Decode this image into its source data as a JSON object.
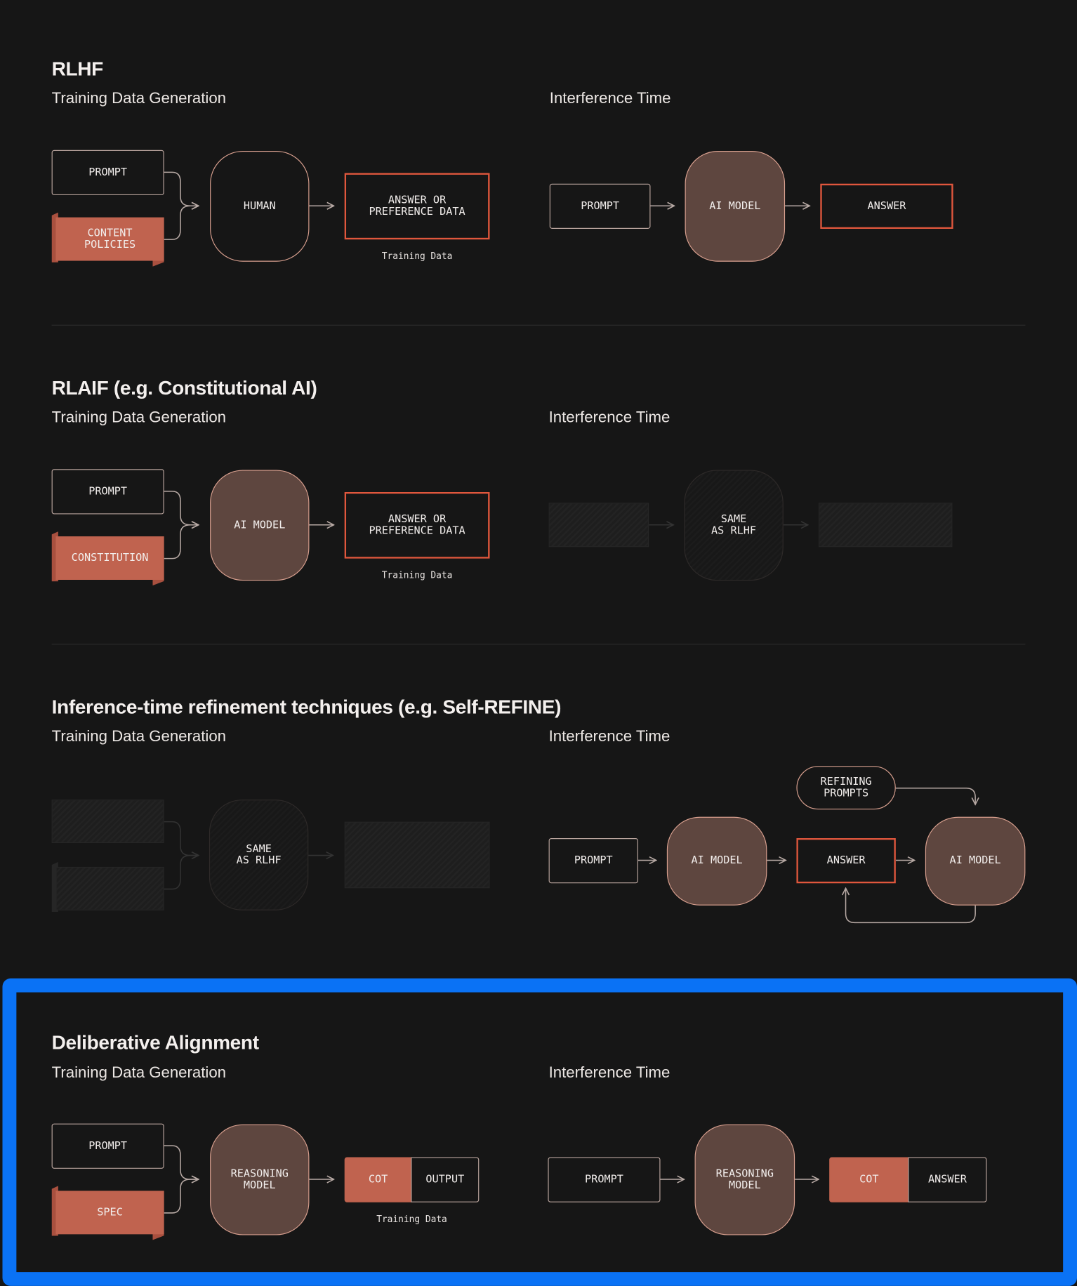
{
  "sections": [
    {
      "title": "RLHF",
      "training_label": "Training Data Generation",
      "inference_label": "Interference Time",
      "training": {
        "input": "PROMPT",
        "policy": "CONTENT\nPOLICIES",
        "model": "HUMAN",
        "output": "ANSWER OR\nPREFERENCE DATA",
        "caption": "Training Data"
      },
      "inference": {
        "input": "PROMPT",
        "model": "AI MODEL",
        "output": "ANSWER"
      }
    },
    {
      "title": "RLAIF (e.g. Constitutional AI)",
      "training_label": "Training Data Generation",
      "inference_label": "Interference Time",
      "training": {
        "input": "PROMPT",
        "policy": "CONSTITUTION",
        "model": "AI MODEL",
        "output": "ANSWER OR\nPREFERENCE DATA",
        "caption": "Training Data"
      },
      "inference": {
        "model": "SAME\nAS RLHF"
      }
    },
    {
      "title": "Inference-time refinement techniques (e.g. Self-REFINE)",
      "training_label": "Training Data Generation",
      "inference_label": "Interference Time",
      "training": {
        "model": "SAME\nAS RLHF"
      },
      "inference": {
        "input": "PROMPT",
        "model": "AI MODEL",
        "output": "ANSWER",
        "refine": "REFINING\nPROMPTS",
        "model2": "AI MODEL"
      }
    },
    {
      "title": "Deliberative Alignment",
      "training_label": "Training Data Generation",
      "inference_label": "Interference Time",
      "highlighted": true,
      "training": {
        "input": "PROMPT",
        "policy": "SPEC",
        "model": "REASONING\nMODEL",
        "cot": "COT",
        "output": "OUTPUT",
        "caption": "Training Data"
      },
      "inference": {
        "input": "PROMPT",
        "model": "REASONING\nMODEL",
        "cot": "COT",
        "output": "ANSWER"
      }
    }
  ],
  "colors": {
    "background": "#161616",
    "model_fill": "#5e463f",
    "model_border": "#d9a08f",
    "accent_orange": "#e0573d",
    "policy_fill": "#c0634f",
    "highlight_frame": "#0a72f5"
  }
}
